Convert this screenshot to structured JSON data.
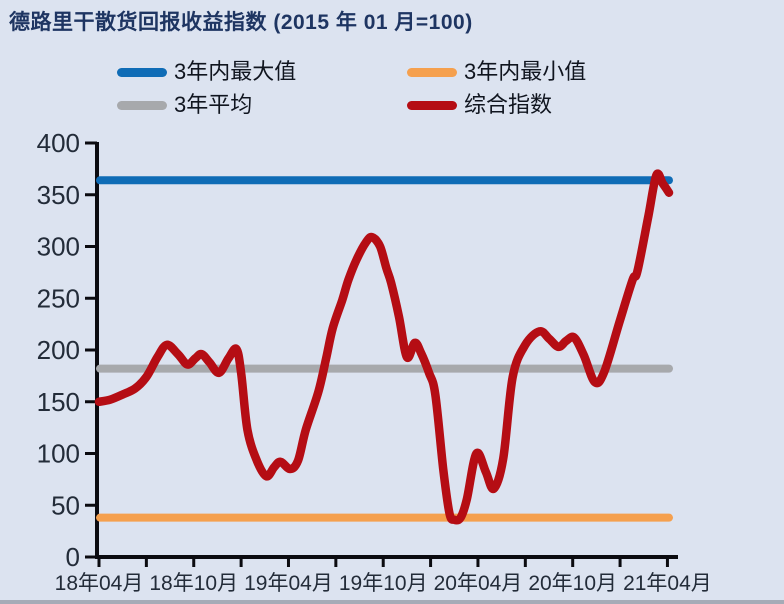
{
  "title": "德路里干散货回报收益指数  (2015 年 01 月=100)",
  "legend": {
    "items": [
      {
        "label": "3年内最大值",
        "color": "#0f6cb6"
      },
      {
        "label": "3年内最小值",
        "color": "#f5a04e"
      },
      {
        "label": "3年平均",
        "color": "#a7a9ac"
      },
      {
        "label": "综合指数",
        "color": "#b50d14"
      }
    ]
  },
  "chart_data": {
    "type": "line",
    "title": "德路里干散货回报收益指数 (2015年01月=100)",
    "legend_position": "top",
    "grid": false,
    "x_axis": {
      "unit": "month",
      "tick_labels": [
        "18年04月",
        "18年10月",
        "19年04月",
        "19年10月",
        "20年04月",
        "20年10月",
        "21年04月"
      ],
      "label_every_months": 6,
      "minor_tick_every_months": 3,
      "months_span": 36
    },
    "y_axis": {
      "min": 0,
      "max": 400,
      "step": 50,
      "tick_labels": [
        "0",
        "50",
        "100",
        "150",
        "200",
        "250",
        "300",
        "350",
        "400"
      ]
    },
    "series": [
      {
        "name": "3年内最大值",
        "type": "hline",
        "value": 364,
        "color": "#0f6cb6"
      },
      {
        "name": "3年内最小值",
        "type": "hline",
        "value": 38,
        "color": "#f5a04e"
      },
      {
        "name": "3年平均",
        "type": "hline",
        "value": 182,
        "color": "#a7a9ac"
      },
      {
        "name": "综合指数",
        "type": "line",
        "color": "#b50d14",
        "points_months_from_2018_04": [
          [
            0,
            150
          ],
          [
            0.7,
            152
          ],
          [
            1.5,
            157
          ],
          [
            2.3,
            163
          ],
          [
            3,
            174
          ],
          [
            3.7,
            193
          ],
          [
            4.3,
            205
          ],
          [
            5,
            196
          ],
          [
            5.6,
            186
          ],
          [
            6.1,
            192
          ],
          [
            6.5,
            196
          ],
          [
            7,
            188
          ],
          [
            7.6,
            178
          ],
          [
            8.2,
            192
          ],
          [
            8.7,
            201
          ],
          [
            9,
            178
          ],
          [
            9.4,
            123
          ],
          [
            10,
            93
          ],
          [
            10.6,
            78
          ],
          [
            11.1,
            87
          ],
          [
            11.5,
            92
          ],
          [
            12.1,
            85
          ],
          [
            12.6,
            93
          ],
          [
            13.1,
            123
          ],
          [
            13.9,
            160
          ],
          [
            14.4,
            193
          ],
          [
            14.8,
            221
          ],
          [
            15.4,
            248
          ],
          [
            15.8,
            268
          ],
          [
            16.3,
            287
          ],
          [
            16.9,
            304
          ],
          [
            17.3,
            309
          ],
          [
            17.8,
            300
          ],
          [
            18.2,
            279
          ],
          [
            18.5,
            265
          ],
          [
            19,
            232
          ],
          [
            19.5,
            193
          ],
          [
            20,
            207
          ],
          [
            20.4,
            197
          ],
          [
            20.9,
            178
          ],
          [
            21.3,
            157
          ],
          [
            21.8,
            85
          ],
          [
            22.2,
            42
          ],
          [
            22.5,
            36
          ],
          [
            22.9,
            38
          ],
          [
            23.3,
            56
          ],
          [
            23.9,
            100
          ],
          [
            24.5,
            82
          ],
          [
            25,
            66
          ],
          [
            25.6,
            95
          ],
          [
            26.2,
            174
          ],
          [
            27,
            205
          ],
          [
            27.9,
            218
          ],
          [
            28.5,
            211
          ],
          [
            29.1,
            203
          ],
          [
            29.6,
            209
          ],
          [
            30.1,
            212
          ],
          [
            30.7,
            195
          ],
          [
            31.4,
            169
          ],
          [
            32,
            179
          ],
          [
            33,
            229
          ],
          [
            33.8,
            268
          ],
          [
            34.1,
            276
          ],
          [
            34.8,
            330
          ],
          [
            35.3,
            369
          ],
          [
            35.7,
            361
          ],
          [
            36.1,
            352
          ]
        ]
      }
    ]
  },
  "colors": {
    "background": "#dce3f0",
    "axis": "#0b0b10",
    "tick_label": "#232c39",
    "title": "#1e3562",
    "bottom_strip": "#a6abb7"
  }
}
